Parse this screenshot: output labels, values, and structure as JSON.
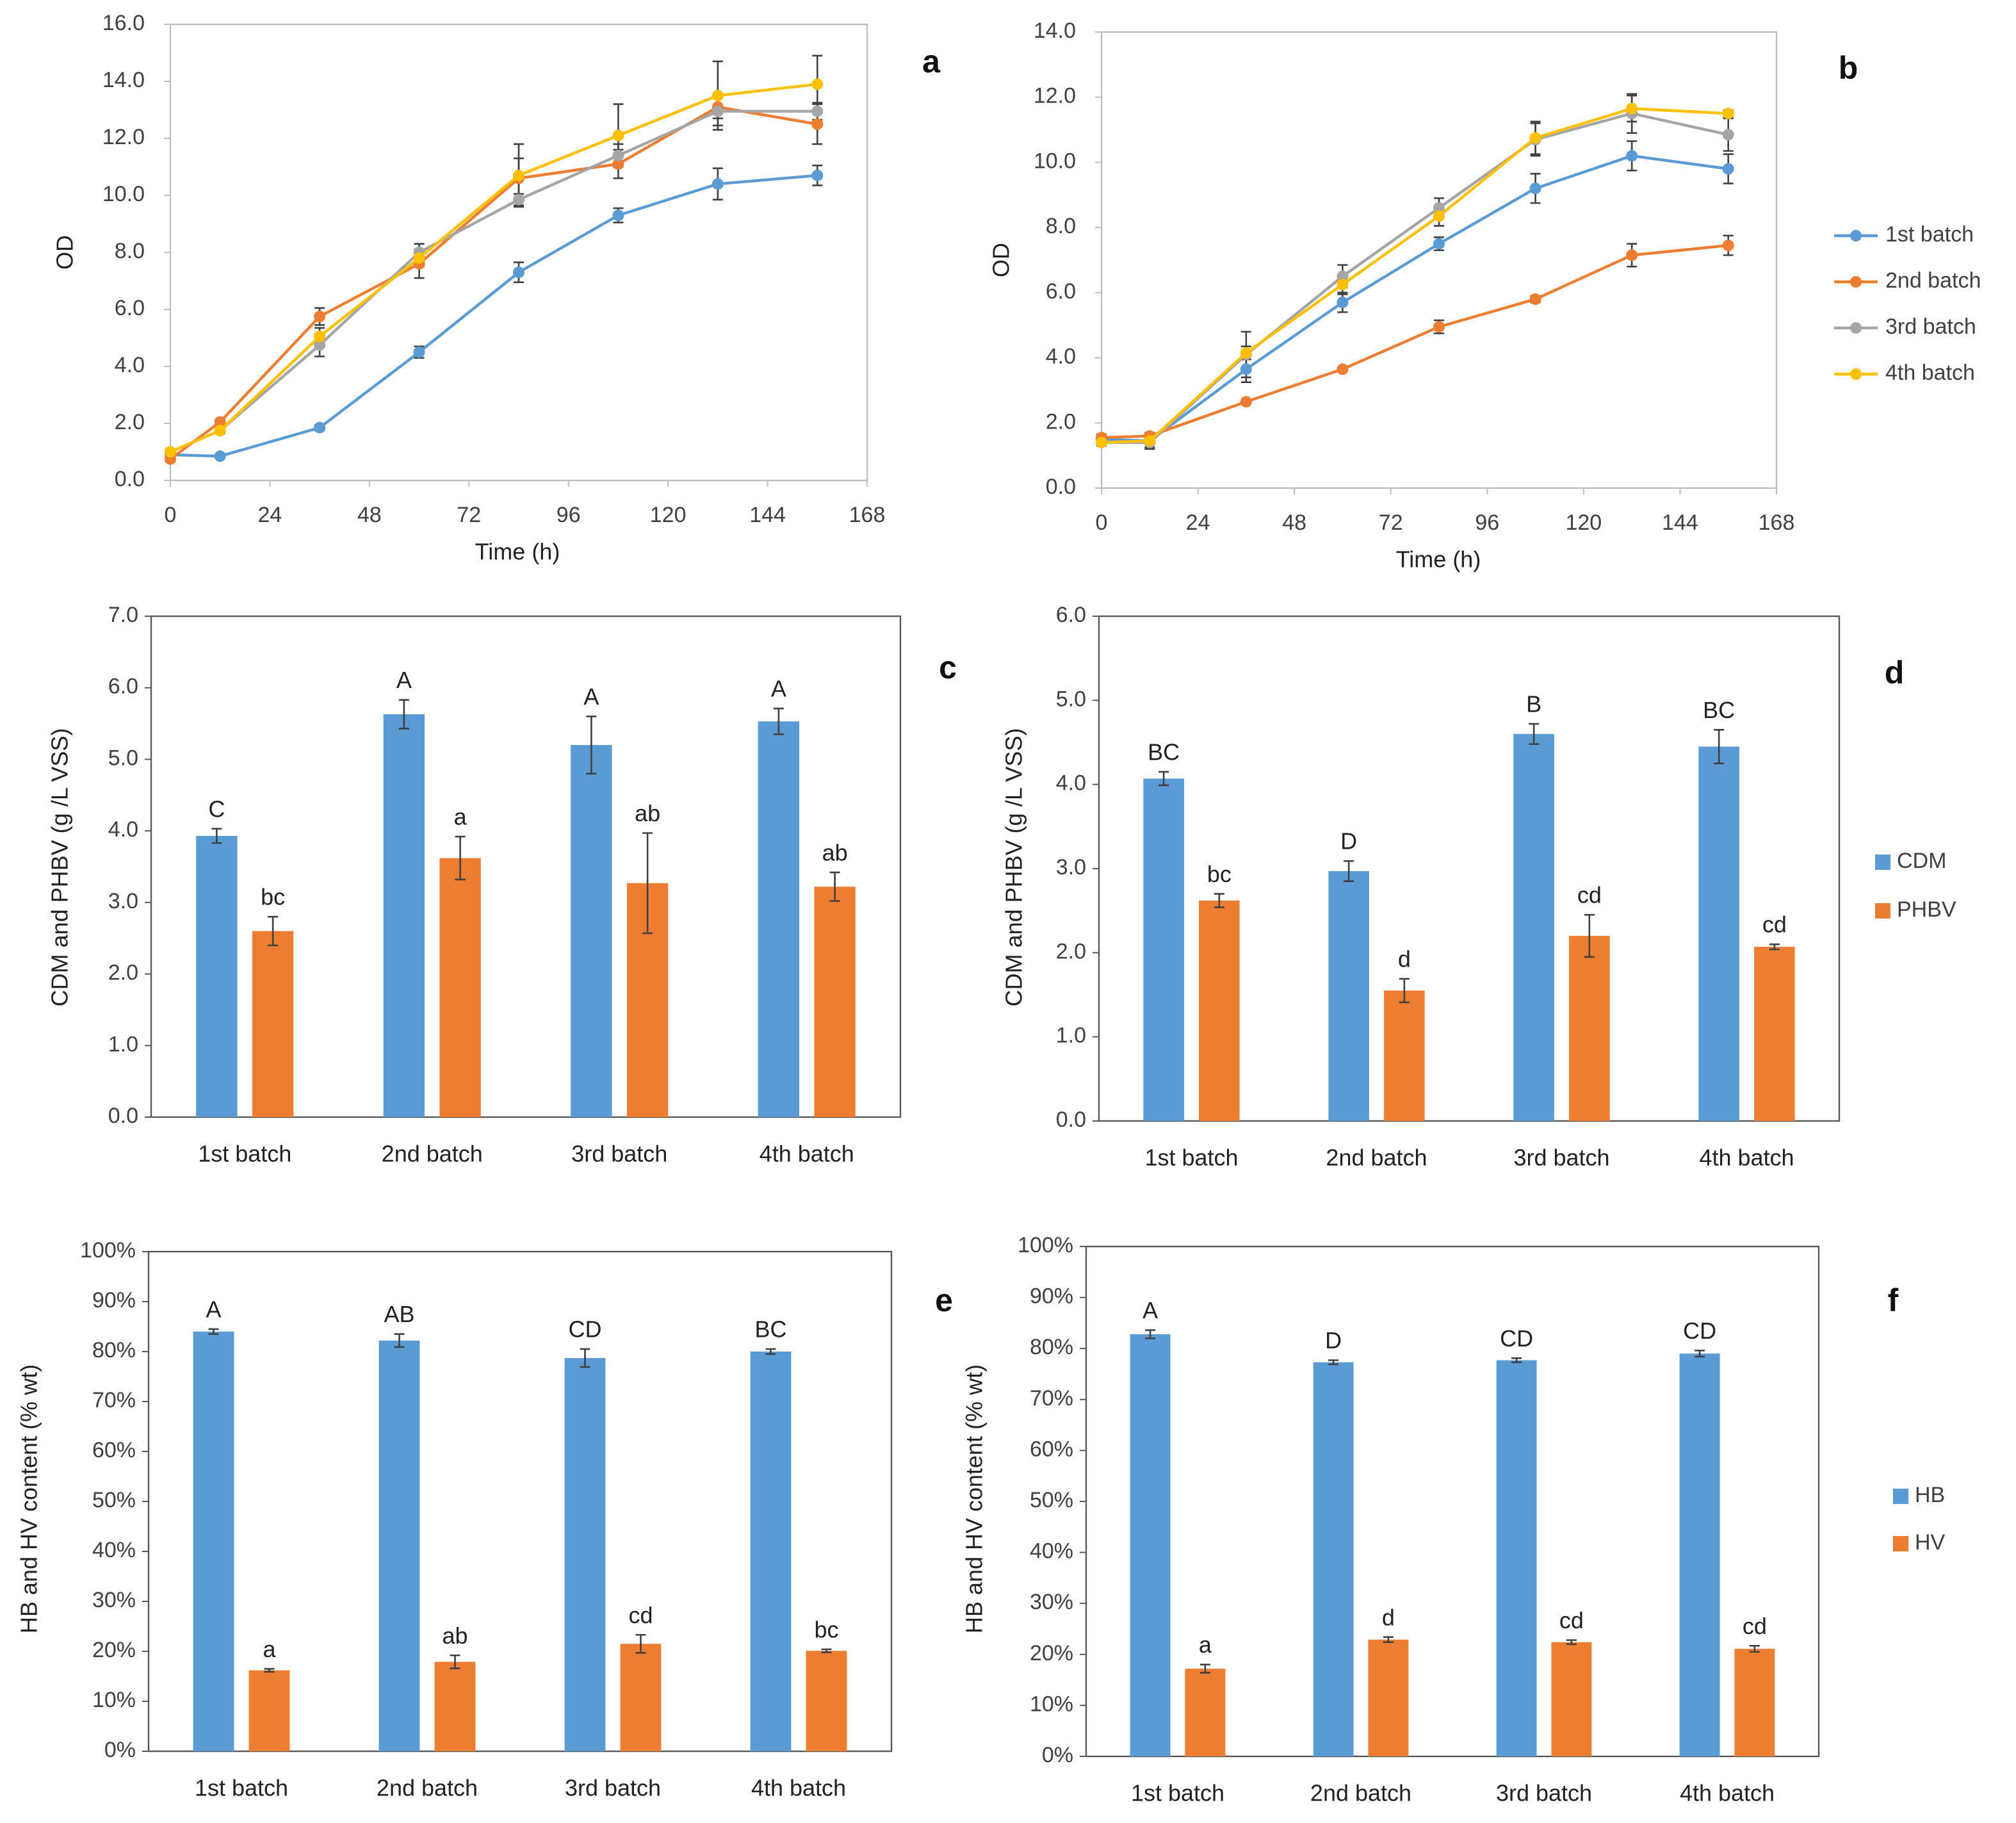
{
  "chart_data": [
    {
      "type": "line",
      "panel_label": "a",
      "xlabel": "Time (h)",
      "ylabel": "OD",
      "x": [
        0,
        12,
        36,
        60,
        84,
        108,
        132,
        156
      ],
      "xlim": [
        0,
        168
      ],
      "xticks": [
        0,
        24,
        48,
        72,
        96,
        120,
        144,
        168
      ],
      "ylim": [
        0,
        16
      ],
      "yticks": [
        {
          "value": 0,
          "label": "0.0"
        },
        {
          "value": 2,
          "label": "2.0"
        },
        {
          "value": 4,
          "label": "4.0"
        },
        {
          "value": 6,
          "label": "6.0"
        },
        {
          "value": 8,
          "label": "8.0"
        },
        {
          "value": 10,
          "label": "10.0"
        },
        {
          "value": 12,
          "label": "12.0"
        },
        {
          "value": 14,
          "label": "14.0"
        },
        {
          "value": 16,
          "label": "16.0"
        }
      ],
      "series": [
        {
          "color": "#5b9bd5",
          "values": [
            0.9,
            0.85,
            1.85,
            4.5,
            7.3,
            9.3,
            10.4,
            10.7
          ],
          "errors": [
            0.1,
            0.05,
            0.1,
            0.2,
            0.35,
            0.25,
            0.55,
            0.35
          ]
        },
        {
          "color": "#ed7d31",
          "values": [
            0.75,
            2.05,
            5.75,
            7.6,
            10.6,
            11.1,
            13.1,
            12.5
          ],
          "errors": [
            0.1,
            0.1,
            0.3,
            0.5,
            0.7,
            0.5,
            0.4,
            0.7
          ]
        },
        {
          "color": "#a5a5a5",
          "values": [
            1.0,
            1.75,
            4.75,
            8.0,
            9.85,
            11.4,
            12.95,
            12.95
          ],
          "errors": [
            0.1,
            0.1,
            0.4,
            0.3,
            0.2,
            0.4,
            0.5,
            0.3
          ]
        },
        {
          "color": "#ffc000",
          "values": [
            1.0,
            1.75,
            5.05,
            7.8,
            10.7,
            12.1,
            13.5,
            13.9
          ],
          "errors": [
            0.1,
            0.1,
            0.3,
            0.3,
            1.1,
            1.1,
            1.2,
            1.0
          ]
        }
      ]
    },
    {
      "type": "line",
      "panel_label": "b",
      "xlabel": "Time (h)",
      "ylabel": "OD",
      "legend": "right",
      "x": [
        0,
        12,
        36,
        60,
        84,
        108,
        132,
        156
      ],
      "xlim": [
        0,
        168
      ],
      "xticks": [
        0,
        24,
        48,
        72,
        96,
        120,
        144,
        168
      ],
      "ylim": [
        0,
        14
      ],
      "yticks": [
        {
          "value": 0,
          "label": "0.0"
        },
        {
          "value": 2,
          "label": "2.0"
        },
        {
          "value": 4,
          "label": "4.0"
        },
        {
          "value": 6,
          "label": "6.0"
        },
        {
          "value": 8,
          "label": "8.0"
        },
        {
          "value": 10,
          "label": "10.0"
        },
        {
          "value": 12,
          "label": "12.0"
        },
        {
          "value": 14,
          "label": "14.0"
        }
      ],
      "series": [
        {
          "name": "1st batch",
          "color": "#5b9bd5",
          "values": [
            1.5,
            1.45,
            3.65,
            5.7,
            7.5,
            9.2,
            10.2,
            9.8
          ],
          "errors": [
            0.1,
            0.2,
            0.4,
            0.3,
            0.2,
            0.45,
            0.45,
            0.45
          ]
        },
        {
          "name": "2nd batch",
          "color": "#ed7d31",
          "values": [
            1.55,
            1.6,
            2.65,
            3.65,
            4.95,
            5.8,
            7.15,
            7.45
          ],
          "errors": [
            0.1,
            0.1,
            0.05,
            0.05,
            0.2,
            0.1,
            0.35,
            0.3
          ]
        },
        {
          "name": "3rd batch",
          "color": "#a5a5a5",
          "values": [
            1.4,
            1.4,
            4.1,
            6.5,
            8.6,
            10.7,
            11.5,
            10.85
          ],
          "errors": [
            0.1,
            0.2,
            0.7,
            0.35,
            0.3,
            0.5,
            0.6,
            0.5
          ]
        },
        {
          "name": "4th batch",
          "color": "#ffc000",
          "values": [
            1.4,
            1.45,
            4.15,
            6.25,
            8.35,
            10.75,
            11.65,
            11.5
          ],
          "errors": [
            0.1,
            0.1,
            0.2,
            0.3,
            0.3,
            0.5,
            0.4,
            0.1
          ]
        }
      ]
    },
    {
      "type": "bar",
      "panel_label": "c",
      "ylabel": "CDM and PHBV (g /L VSS)",
      "categories": [
        "1st batch",
        "2nd batch",
        "3rd batch",
        "4th batch"
      ],
      "ylim": [
        0,
        7
      ],
      "yticks": [
        {
          "value": 0,
          "label": "0.0"
        },
        {
          "value": 1,
          "label": "1.0"
        },
        {
          "value": 2,
          "label": "2.0"
        },
        {
          "value": 3,
          "label": "3.0"
        },
        {
          "value": 4,
          "label": "4.0"
        },
        {
          "value": 5,
          "label": "5.0"
        },
        {
          "value": 6,
          "label": "6.0"
        },
        {
          "value": 7,
          "label": "7.0"
        }
      ],
      "series": [
        {
          "color": "#5b9bd5",
          "values": [
            3.93,
            5.63,
            5.2,
            5.53
          ],
          "errors": [
            0.1,
            0.2,
            0.4,
            0.18
          ],
          "letters": [
            "C",
            "A",
            "A",
            "A"
          ]
        },
        {
          "color": "#ed7d31",
          "values": [
            2.6,
            3.62,
            3.27,
            3.22
          ],
          "errors": [
            0.2,
            0.3,
            0.7,
            0.2
          ],
          "letters": [
            "bc",
            "a",
            "ab",
            "ab"
          ]
        }
      ]
    },
    {
      "type": "bar",
      "panel_label": "d",
      "ylabel": "CDM and PHBV (g /L VSS)",
      "legend": "right",
      "categories": [
        "1st batch",
        "2nd batch",
        "3rd batch",
        "4th batch"
      ],
      "ylim": [
        0,
        6
      ],
      "yticks": [
        {
          "value": 0,
          "label": "0.0"
        },
        {
          "value": 1,
          "label": "1.0"
        },
        {
          "value": 2,
          "label": "2.0"
        },
        {
          "value": 3,
          "label": "3.0"
        },
        {
          "value": 4,
          "label": "4.0"
        },
        {
          "value": 5,
          "label": "5.0"
        },
        {
          "value": 6,
          "label": "6.0"
        }
      ],
      "series": [
        {
          "name": "CDM",
          "color": "#5b9bd5",
          "values": [
            4.07,
            2.97,
            4.6,
            4.45
          ],
          "errors": [
            0.08,
            0.12,
            0.12,
            0.2
          ],
          "letters": [
            "BC",
            "D",
            "B",
            "BC"
          ]
        },
        {
          "name": "PHBV",
          "color": "#ed7d31",
          "values": [
            2.62,
            1.55,
            2.2,
            2.07
          ],
          "errors": [
            0.08,
            0.14,
            0.25,
            0.03
          ],
          "letters": [
            "bc",
            "d",
            "cd",
            "cd"
          ]
        }
      ]
    },
    {
      "type": "bar",
      "panel_label": "e",
      "ylabel": "HB and HV content (% wt)",
      "categories": [
        "1st batch",
        "2nd batch",
        "3rd batch",
        "4th batch"
      ],
      "ylim": [
        0,
        100
      ],
      "yticks": [
        {
          "value": 0,
          "label": "0%"
        },
        {
          "value": 10,
          "label": "10%"
        },
        {
          "value": 20,
          "label": "20%"
        },
        {
          "value": 30,
          "label": "30%"
        },
        {
          "value": 40,
          "label": "40%"
        },
        {
          "value": 50,
          "label": "50%"
        },
        {
          "value": 60,
          "label": "60%"
        },
        {
          "value": 70,
          "label": "70%"
        },
        {
          "value": 80,
          "label": "80%"
        },
        {
          "value": 90,
          "label": "90%"
        },
        {
          "value": 100,
          "label": "100%"
        }
      ],
      "series": [
        {
          "color": "#5b9bd5",
          "values": [
            84,
            82.2,
            78.7,
            80
          ],
          "errors": [
            0.5,
            1.3,
            1.8,
            0.5
          ],
          "letters": [
            "A",
            "AB",
            "CD",
            "BC"
          ]
        },
        {
          "color": "#ed7d31",
          "values": [
            16.2,
            17.9,
            21.5,
            20.1
          ],
          "errors": [
            0.3,
            1.3,
            1.8,
            0.3
          ],
          "letters": [
            "a",
            "ab",
            "cd",
            "bc"
          ]
        }
      ]
    },
    {
      "type": "bar",
      "panel_label": "f",
      "ylabel": "HB and HV content (% wt)",
      "legend": "right",
      "categories": [
        "1st batch",
        "2nd batch",
        "3rd batch",
        "4th batch"
      ],
      "ylim": [
        0,
        100
      ],
      "yticks": [
        {
          "value": 0,
          "label": "0%"
        },
        {
          "value": 10,
          "label": "10%"
        },
        {
          "value": 20,
          "label": "20%"
        },
        {
          "value": 30,
          "label": "30%"
        },
        {
          "value": 40,
          "label": "40%"
        },
        {
          "value": 50,
          "label": "50%"
        },
        {
          "value": 60,
          "label": "60%"
        },
        {
          "value": 70,
          "label": "70%"
        },
        {
          "value": 80,
          "label": "80%"
        },
        {
          "value": 90,
          "label": "90%"
        },
        {
          "value": 100,
          "label": "100%"
        }
      ],
      "series": [
        {
          "name": "HB",
          "color": "#5b9bd5",
          "values": [
            82.8,
            77.3,
            77.7,
            79
          ],
          "errors": [
            0.8,
            0.4,
            0.4,
            0.6
          ],
          "letters": [
            "A",
            "D",
            "CD",
            "CD"
          ]
        },
        {
          "name": "HV",
          "color": "#ed7d31",
          "values": [
            17.2,
            22.9,
            22.4,
            21.1
          ],
          "errors": [
            0.8,
            0.5,
            0.4,
            0.6
          ],
          "letters": [
            "a",
            "d",
            "cd",
            "cd"
          ]
        }
      ]
    }
  ]
}
